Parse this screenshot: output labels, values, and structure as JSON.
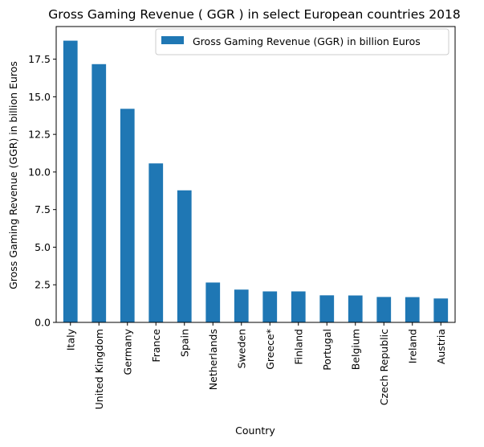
{
  "chart_data": {
    "type": "bar",
    "title": "Gross Gaming Revenue ( GGR ) in select European countries 2018",
    "xlabel": "Country",
    "ylabel": "Gross Gaming Revenue (GGR) in billion Euros",
    "categories": [
      "Italy",
      "United Kingdom",
      "Germany",
      "France",
      "Spain",
      "Netherlands",
      "Sweden",
      "Greece*",
      "Finland",
      "Portugal",
      "Belgium",
      "Czech Republic",
      "Ireland",
      "Austria"
    ],
    "series": [
      {
        "name": "Gross Gaming Revenue (GGR) in billion Euros",
        "color": "#1f77b4",
        "values": [
          18.73,
          17.17,
          14.2,
          10.57,
          8.78,
          2.65,
          2.18,
          2.06,
          2.06,
          1.8,
          1.79,
          1.69,
          1.68,
          1.59
        ]
      }
    ],
    "ylim": [
      0,
      19.67
    ],
    "yticks": [
      "0.0",
      "2.5",
      "5.0",
      "7.5",
      "10.0",
      "12.5",
      "15.0",
      "17.5"
    ],
    "legend": "top-right",
    "grid": false
  }
}
